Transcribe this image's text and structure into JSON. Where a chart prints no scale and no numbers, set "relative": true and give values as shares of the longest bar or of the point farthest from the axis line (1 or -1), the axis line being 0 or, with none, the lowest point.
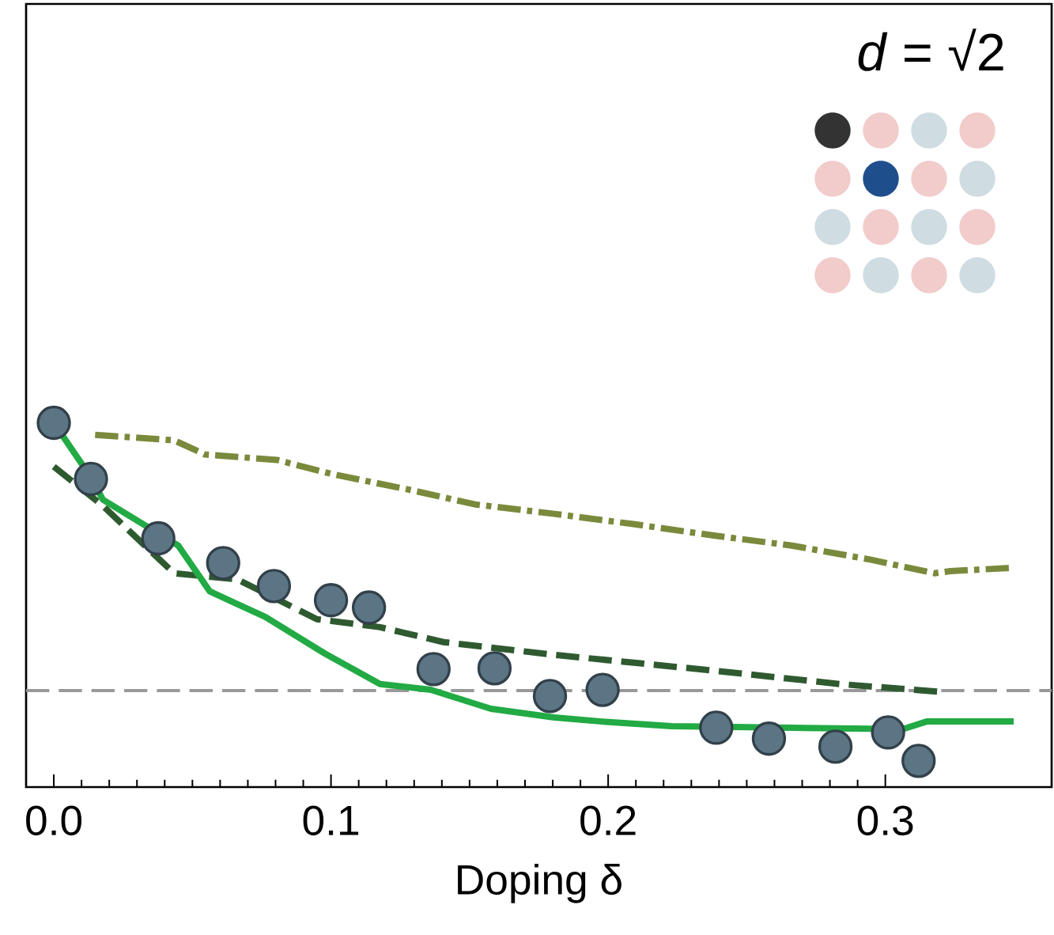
{
  "chart_data": {
    "type": "line",
    "relative": true,
    "xlabel": "Doping δ",
    "xlim": [
      -0.01,
      0.36
    ],
    "xticks": [
      {
        "value": 0,
        "label": "0.0"
      },
      0.1,
      0.2,
      0.3
    ],
    "annotations": [
      "*d* = √2"
    ],
    "grid": false,
    "ref_lines": [
      {
        "axis": "y",
        "value": 0.265,
        "color": "#999999",
        "line_style": "dashed"
      }
    ],
    "series": [
      {
        "color": "#7a8a3c",
        "line_style": "dashdot",
        "x": [
          0.0149,
          0.0434,
          0.0546,
          0.0806,
          0.1006,
          0.1291,
          0.152,
          0.1806,
          0.2091,
          0.2377,
          0.2663,
          0.2949,
          0.3177,
          0.3234,
          0.3463
        ],
        "values": [
          0.967,
          0.952,
          0.913,
          0.898,
          0.859,
          0.815,
          0.776,
          0.75,
          0.722,
          0.691,
          0.663,
          0.624,
          0.587,
          0.593,
          0.602
        ]
      },
      {
        "color": "#2f5a30",
        "line_style": "dashed",
        "x": [
          0,
          0.0177,
          0.0434,
          0.0663,
          0.0949,
          0.1177,
          0.1406,
          0.1806,
          0.2377,
          0.2834,
          0.3206
        ],
        "values": [
          0.88,
          0.772,
          0.587,
          0.57,
          0.461,
          0.439,
          0.398,
          0.363,
          0.32,
          0.283,
          0.261
        ]
      },
      {
        "color": "#22aa44",
        "line_style": "solid",
        "x": [
          0,
          0.0134,
          0.0177,
          0.0449,
          0.0563,
          0.0763,
          0.0977,
          0.1177,
          0.136,
          0.1577,
          0.1806,
          0.1977,
          0.2229,
          0.2663,
          0.3063,
          0.3149,
          0.3463
        ],
        "values": [
          1.0,
          0.85,
          0.789,
          0.663,
          0.537,
          0.467,
          0.367,
          0.283,
          0.267,
          0.215,
          0.191,
          0.18,
          0.167,
          0.163,
          0.159,
          0.18,
          0.18
        ]
      },
      {
        "type": "scatter",
        "color": "#5b7585",
        "marker": "circle",
        "x": [
          0,
          0.0134,
          0.0377,
          0.0611,
          0.0794,
          0.1,
          0.1137,
          0.137,
          0.159,
          0.179,
          0.198,
          0.239,
          0.258,
          0.282,
          0.301,
          0.312
        ],
        "values": [
          1.0,
          0.846,
          0.683,
          0.615,
          0.552,
          0.513,
          0.493,
          0.324,
          0.326,
          0.25,
          0.267,
          0.163,
          0.133,
          0.111,
          0.15,
          0.072
        ]
      }
    ]
  }
}
